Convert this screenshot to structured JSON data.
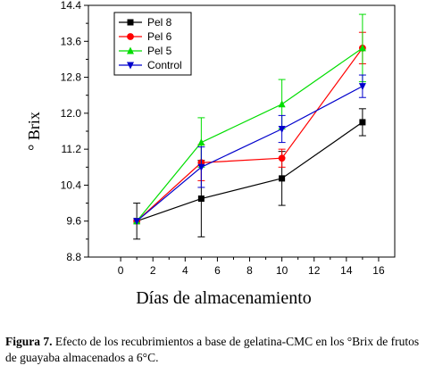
{
  "chart_data": {
    "type": "line",
    "title": "",
    "xlabel": "Días de almacenamiento",
    "ylabel": "° Brix",
    "xlim": [
      -2,
      17
    ],
    "ylim": [
      8.8,
      14.4
    ],
    "xticks": [
      "0",
      "2",
      "4",
      "6",
      "8",
      "10",
      "12",
      "14",
      "16"
    ],
    "yticks": [
      "8.8",
      "9.6",
      "10.4",
      "11.2",
      "12.0",
      "12.8",
      "13.6",
      "14.4"
    ],
    "x": [
      1,
      5,
      10,
      15
    ],
    "grid": false,
    "legend_position": "top-left",
    "series": [
      {
        "name": "Pel 8",
        "color": "#000000",
        "marker": "square",
        "values": [
          9.6,
          10.1,
          10.55,
          11.8
        ],
        "errors": [
          0.4,
          0.85,
          0.6,
          0.3
        ]
      },
      {
        "name": "Pel 6",
        "color": "#ff0000",
        "marker": "circle",
        "values": [
          9.6,
          10.9,
          11.0,
          13.45
        ],
        "errors": [
          0.0,
          0.4,
          0.2,
          0.35
        ]
      },
      {
        "name": "Pel 5",
        "color": "#00dd00",
        "marker": "triangle-up",
        "values": [
          9.6,
          11.35,
          12.2,
          13.45
        ],
        "errors": [
          0.0,
          0.55,
          0.55,
          0.75
        ]
      },
      {
        "name": "Control",
        "color": "#0000cc",
        "marker": "triangle-down",
        "values": [
          9.6,
          10.8,
          11.65,
          12.6
        ],
        "errors": [
          0.0,
          0.45,
          0.3,
          0.25
        ]
      }
    ]
  },
  "caption": {
    "label": "Figura 7.",
    "text": " Efecto de los recubrimientos a base de gelatina-CMC en los °Brix de frutos de guayaba almacenados a 6°C."
  }
}
